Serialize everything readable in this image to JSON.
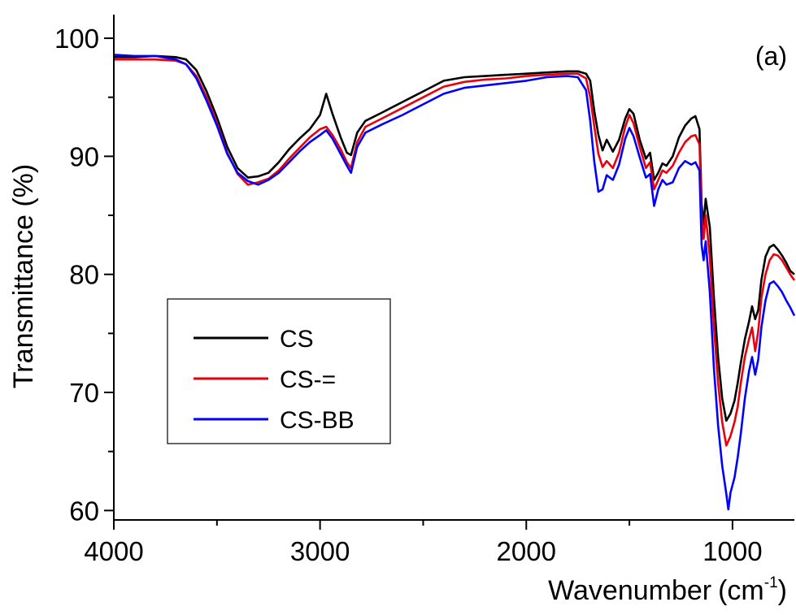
{
  "chart_data": {
    "type": "line",
    "panel_label": "(a)",
    "xlabel": "Wavenumber",
    "xunit_base": "(cm",
    "xunit_exp": "-1",
    "xunit_close": ")",
    "ylabel": "Transmittance (%)",
    "xlim": [
      4000,
      700
    ],
    "ylim": [
      59.2,
      102
    ],
    "x_ticks": [
      4000,
      3000,
      2000,
      1000
    ],
    "x_tick_labels": [
      "4000",
      "3000",
      "2000",
      "1000"
    ],
    "y_ticks": [
      60,
      70,
      80,
      90,
      100
    ],
    "y_tick_labels": [
      "60",
      "70",
      "80",
      "90",
      "100"
    ],
    "legend_position": "middle-left",
    "grid": false,
    "series": [
      {
        "name": "CS",
        "color": "#000000",
        "points": [
          [
            4000,
            98.4
          ],
          [
            3900,
            98.4
          ],
          [
            3800,
            98.5
          ],
          [
            3700,
            98.4
          ],
          [
            3650,
            98.2
          ],
          [
            3600,
            97.3
          ],
          [
            3550,
            95.5
          ],
          [
            3500,
            93.3
          ],
          [
            3450,
            90.8
          ],
          [
            3400,
            89.0
          ],
          [
            3350,
            88.2
          ],
          [
            3300,
            88.3
          ],
          [
            3250,
            88.6
          ],
          [
            3200,
            89.5
          ],
          [
            3150,
            90.6
          ],
          [
            3100,
            91.5
          ],
          [
            3050,
            92.3
          ],
          [
            3000,
            93.5
          ],
          [
            2970,
            95.3
          ],
          [
            2940,
            93.6
          ],
          [
            2900,
            91.6
          ],
          [
            2870,
            90.3
          ],
          [
            2850,
            90.1
          ],
          [
            2820,
            92.0
          ],
          [
            2780,
            93.0
          ],
          [
            2700,
            93.7
          ],
          [
            2600,
            94.6
          ],
          [
            2500,
            95.5
          ],
          [
            2400,
            96.4
          ],
          [
            2300,
            96.7
          ],
          [
            2200,
            96.8
          ],
          [
            2100,
            96.9
          ],
          [
            2000,
            97.0
          ],
          [
            1900,
            97.1
          ],
          [
            1800,
            97.2
          ],
          [
            1750,
            97.2
          ],
          [
            1710,
            97.0
          ],
          [
            1690,
            96.4
          ],
          [
            1670,
            93.8
          ],
          [
            1650,
            91.8
          ],
          [
            1630,
            90.5
          ],
          [
            1610,
            91.4
          ],
          [
            1580,
            90.4
          ],
          [
            1550,
            91.4
          ],
          [
            1520,
            93.2
          ],
          [
            1500,
            94.0
          ],
          [
            1480,
            93.6
          ],
          [
            1450,
            91.4
          ],
          [
            1420,
            89.8
          ],
          [
            1400,
            90.3
          ],
          [
            1380,
            88.0
          ],
          [
            1360,
            88.6
          ],
          [
            1340,
            89.4
          ],
          [
            1320,
            89.2
          ],
          [
            1290,
            90.0
          ],
          [
            1260,
            91.6
          ],
          [
            1230,
            92.6
          ],
          [
            1200,
            93.2
          ],
          [
            1180,
            93.4
          ],
          [
            1160,
            92.3
          ],
          [
            1150,
            86.0
          ],
          [
            1140,
            84.2
          ],
          [
            1130,
            86.4
          ],
          [
            1110,
            84.0
          ],
          [
            1090,
            78.0
          ],
          [
            1070,
            73.0
          ],
          [
            1050,
            69.5
          ],
          [
            1030,
            67.6
          ],
          [
            1010,
            68.2
          ],
          [
            990,
            69.3
          ],
          [
            975,
            70.8
          ],
          [
            960,
            72.5
          ],
          [
            940,
            74.5
          ],
          [
            920,
            76.0
          ],
          [
            905,
            77.3
          ],
          [
            890,
            76.2
          ],
          [
            875,
            77.0
          ],
          [
            860,
            79.5
          ],
          [
            840,
            81.5
          ],
          [
            820,
            82.3
          ],
          [
            800,
            82.5
          ],
          [
            780,
            82.1
          ],
          [
            760,
            81.6
          ],
          [
            740,
            81.0
          ],
          [
            720,
            80.3
          ],
          [
            700,
            80.0
          ]
        ]
      },
      {
        "name": "CS-=",
        "color": "#e8000b",
        "points": [
          [
            4000,
            98.2
          ],
          [
            3900,
            98.2
          ],
          [
            3800,
            98.2
          ],
          [
            3700,
            98.1
          ],
          [
            3650,
            97.8
          ],
          [
            3600,
            96.8
          ],
          [
            3550,
            95.0
          ],
          [
            3500,
            92.8
          ],
          [
            3450,
            90.3
          ],
          [
            3400,
            88.5
          ],
          [
            3350,
            87.6
          ],
          [
            3300,
            87.8
          ],
          [
            3250,
            88.1
          ],
          [
            3200,
            88.8
          ],
          [
            3150,
            89.8
          ],
          [
            3100,
            90.7
          ],
          [
            3050,
            91.6
          ],
          [
            3000,
            92.3
          ],
          [
            2970,
            92.5
          ],
          [
            2940,
            91.8
          ],
          [
            2900,
            90.6
          ],
          [
            2870,
            89.5
          ],
          [
            2850,
            89.0
          ],
          [
            2820,
            91.2
          ],
          [
            2780,
            92.5
          ],
          [
            2700,
            93.2
          ],
          [
            2600,
            94.1
          ],
          [
            2500,
            95.0
          ],
          [
            2400,
            95.9
          ],
          [
            2300,
            96.3
          ],
          [
            2200,
            96.5
          ],
          [
            2100,
            96.6
          ],
          [
            2000,
            96.8
          ],
          [
            1900,
            96.9
          ],
          [
            1800,
            97.0
          ],
          [
            1750,
            97.0
          ],
          [
            1710,
            96.6
          ],
          [
            1690,
            95.0
          ],
          [
            1670,
            92.5
          ],
          [
            1650,
            90.2
          ],
          [
            1630,
            89.1
          ],
          [
            1610,
            89.6
          ],
          [
            1580,
            89.0
          ],
          [
            1550,
            90.3
          ],
          [
            1520,
            92.5
          ],
          [
            1500,
            93.5
          ],
          [
            1480,
            92.8
          ],
          [
            1450,
            90.8
          ],
          [
            1420,
            89.0
          ],
          [
            1400,
            89.5
          ],
          [
            1380,
            87.2
          ],
          [
            1360,
            88.0
          ],
          [
            1340,
            88.8
          ],
          [
            1320,
            88.6
          ],
          [
            1290,
            89.2
          ],
          [
            1260,
            90.3
          ],
          [
            1230,
            91.2
          ],
          [
            1200,
            91.7
          ],
          [
            1180,
            91.8
          ],
          [
            1160,
            91.0
          ],
          [
            1150,
            84.8
          ],
          [
            1140,
            83.0
          ],
          [
            1130,
            85.0
          ],
          [
            1110,
            81.5
          ],
          [
            1090,
            75.5
          ],
          [
            1070,
            70.8
          ],
          [
            1050,
            67.5
          ],
          [
            1030,
            65.5
          ],
          [
            1010,
            66.3
          ],
          [
            990,
            67.5
          ],
          [
            975,
            68.8
          ],
          [
            960,
            70.8
          ],
          [
            940,
            73.0
          ],
          [
            920,
            74.5
          ],
          [
            905,
            75.5
          ],
          [
            890,
            73.5
          ],
          [
            875,
            75.2
          ],
          [
            860,
            78.0
          ],
          [
            840,
            80.0
          ],
          [
            820,
            81.2
          ],
          [
            800,
            81.7
          ],
          [
            780,
            81.6
          ],
          [
            760,
            81.2
          ],
          [
            740,
            80.6
          ],
          [
            720,
            80.0
          ],
          [
            700,
            79.5
          ]
        ]
      },
      {
        "name": "CS-BB",
        "color": "#0000ff",
        "points": [
          [
            4000,
            98.6
          ],
          [
            3900,
            98.5
          ],
          [
            3800,
            98.5
          ],
          [
            3700,
            98.2
          ],
          [
            3650,
            97.8
          ],
          [
            3600,
            96.6
          ],
          [
            3550,
            94.7
          ],
          [
            3500,
            92.6
          ],
          [
            3450,
            90.2
          ],
          [
            3400,
            88.6
          ],
          [
            3350,
            87.9
          ],
          [
            3300,
            87.6
          ],
          [
            3250,
            88.0
          ],
          [
            3200,
            88.6
          ],
          [
            3150,
            89.5
          ],
          [
            3100,
            90.4
          ],
          [
            3050,
            91.2
          ],
          [
            3000,
            91.8
          ],
          [
            2970,
            92.2
          ],
          [
            2940,
            91.5
          ],
          [
            2900,
            90.2
          ],
          [
            2870,
            89.2
          ],
          [
            2850,
            88.6
          ],
          [
            2820,
            90.8
          ],
          [
            2780,
            92.0
          ],
          [
            2700,
            92.7
          ],
          [
            2600,
            93.5
          ],
          [
            2500,
            94.4
          ],
          [
            2400,
            95.3
          ],
          [
            2300,
            95.8
          ],
          [
            2200,
            96.0
          ],
          [
            2100,
            96.2
          ],
          [
            2000,
            96.4
          ],
          [
            1900,
            96.7
          ],
          [
            1800,
            96.8
          ],
          [
            1750,
            96.7
          ],
          [
            1710,
            95.6
          ],
          [
            1690,
            93.0
          ],
          [
            1670,
            89.5
          ],
          [
            1650,
            87.0
          ],
          [
            1630,
            87.2
          ],
          [
            1610,
            88.4
          ],
          [
            1580,
            88.0
          ],
          [
            1550,
            89.3
          ],
          [
            1520,
            91.5
          ],
          [
            1500,
            92.4
          ],
          [
            1480,
            91.7
          ],
          [
            1450,
            89.9
          ],
          [
            1420,
            88.2
          ],
          [
            1400,
            88.5
          ],
          [
            1380,
            85.8
          ],
          [
            1360,
            87.2
          ],
          [
            1340,
            88.0
          ],
          [
            1320,
            87.6
          ],
          [
            1290,
            87.8
          ],
          [
            1260,
            89.0
          ],
          [
            1230,
            89.6
          ],
          [
            1200,
            89.3
          ],
          [
            1180,
            89.5
          ],
          [
            1160,
            88.8
          ],
          [
            1150,
            82.5
          ],
          [
            1140,
            81.2
          ],
          [
            1130,
            82.8
          ],
          [
            1110,
            78.5
          ],
          [
            1090,
            72.0
          ],
          [
            1070,
            67.2
          ],
          [
            1050,
            63.8
          ],
          [
            1030,
            61.4
          ],
          [
            1020,
            60.1
          ],
          [
            1010,
            61.5
          ],
          [
            990,
            62.8
          ],
          [
            975,
            64.5
          ],
          [
            960,
            66.5
          ],
          [
            940,
            69.5
          ],
          [
            920,
            71.8
          ],
          [
            905,
            73.0
          ],
          [
            890,
            71.5
          ],
          [
            875,
            72.8
          ],
          [
            860,
            75.5
          ],
          [
            840,
            77.8
          ],
          [
            820,
            79.2
          ],
          [
            800,
            79.4
          ],
          [
            780,
            79.0
          ],
          [
            760,
            78.5
          ],
          [
            740,
            77.8
          ],
          [
            720,
            77.2
          ],
          [
            700,
            76.5
          ]
        ]
      }
    ]
  }
}
